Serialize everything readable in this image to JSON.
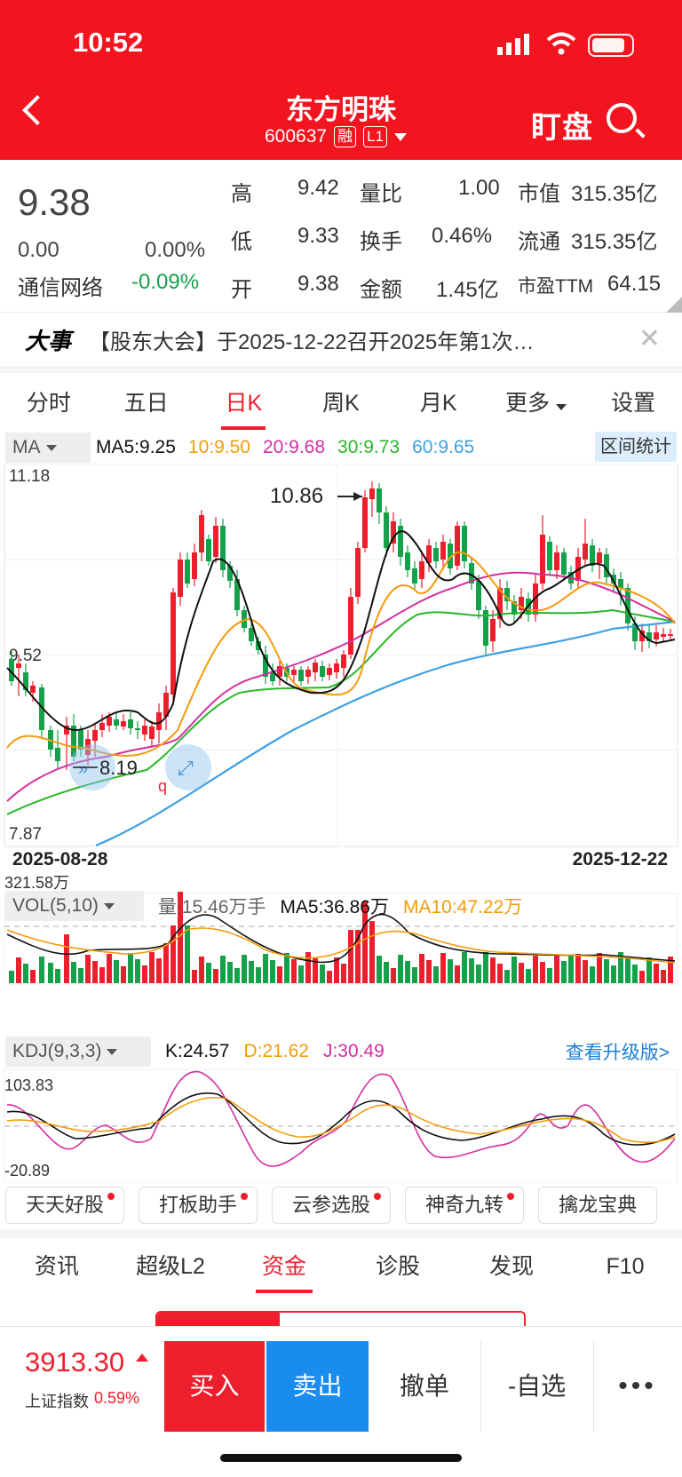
{
  "status_bar": {
    "time": "10:52"
  },
  "header": {
    "title": "东方明珠",
    "code": "600637",
    "tag1": "融",
    "tag2": "L1",
    "watch_label": "盯盘"
  },
  "quote": {
    "price": "9.38",
    "change": "0.00",
    "change_pct": "0.00%",
    "sector": "通信网络",
    "sector_pct": "-0.09%",
    "fields": {
      "high_label": "高",
      "high": "9.42",
      "low_label": "低",
      "low": "9.33",
      "open_label": "开",
      "open": "9.38",
      "vol_ratio_label": "量比",
      "vol_ratio": "1.00",
      "turnover_label": "换手",
      "turnover": "0.46%",
      "amount_label": "金额",
      "amount": "1.45亿",
      "mcap_label": "市值",
      "mcap": "315.35亿",
      "float_label": "流通",
      "float": "315.35亿",
      "pe_label": "市盈TTM",
      "pe": "64.15"
    }
  },
  "news": {
    "tag": "大事",
    "text": "【股东大会】于2025-12-22召开2025年第1次…"
  },
  "chart_tabs": [
    "分时",
    "五日",
    "日K",
    "周K",
    "月K",
    "更多",
    "设置"
  ],
  "ma_bar": {
    "selector": "MA",
    "ma5": "MA5:9.25",
    "ma10": "10:9.50",
    "ma20": "20:9.68",
    "ma30": "30:9.73",
    "ma60": "60:9.65",
    "interval": "区间统计"
  },
  "price_chart": {
    "y_max": "11.18",
    "y_mid": "9.52",
    "y_min": "7.87",
    "high_mark": "10.86",
    "low_mark": "8.19",
    "date_start": "2025-08-28",
    "date_end": "2025-12-22"
  },
  "vol_bar": {
    "selector": "VOL(5,10)",
    "vol": "量:15.46万手",
    "ma5": "MA5:36.86万",
    "ma10": "MA10:47.22万",
    "y_max": "321.58万"
  },
  "kdj_bar": {
    "selector": "KDJ(9,3,3)",
    "k": "K:24.57",
    "d": "D:21.62",
    "j": "J:30.49",
    "upgrade": "查看升级版>",
    "y_max": "103.83",
    "y_min": "-20.89"
  },
  "tools": [
    "天天好股",
    "打板助手",
    "云参选股",
    "神奇九转",
    "擒龙宝典"
  ],
  "bottom_tabs": [
    "资讯",
    "超级L2",
    "资金",
    "诊股",
    "发现",
    "F10"
  ],
  "footer": {
    "index_value": "3913.30",
    "index_name": "上证指数",
    "index_change": "0.59%",
    "buy": "买入",
    "sell": "卖出",
    "cancel": "撤单",
    "fav": "-自选",
    "more": "•••"
  },
  "colors": {
    "brand": "#f2141f",
    "up": "#ee1f2d",
    "down": "#15a14a",
    "sell": "#1a8cf0"
  }
}
